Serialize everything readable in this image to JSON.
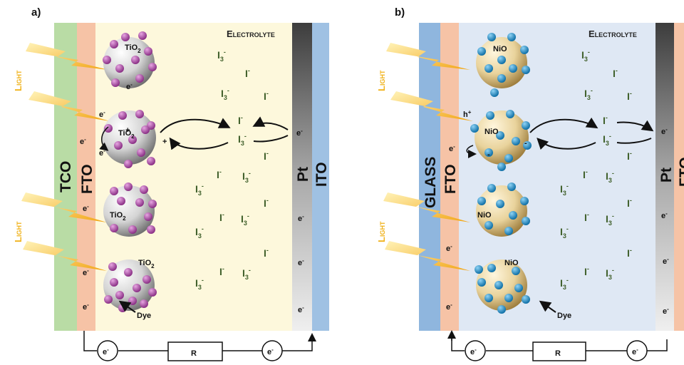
{
  "panel_a": {
    "tag": "a)",
    "electrolyte": "Electrolyte",
    "light_top": "Light",
    "light_bottom": "Light",
    "tco": "TCO",
    "fto": "FTO",
    "pt": "Pt",
    "ito": "ITO",
    "np_label": "TiO",
    "np_sub": "2",
    "dye": "Dye",
    "resistor": "R",
    "electron": "e",
    "electron_sup": "-",
    "hole_plus": "+"
  },
  "panel_b": {
    "tag": "b)",
    "electrolyte": "Electrolyte",
    "light_top": "Light",
    "light_bottom": "Light",
    "glass": "GLASS",
    "fto": "FTO",
    "pt": "Pt",
    "fto_right": "FTO",
    "np_label": "NiO",
    "dye": "Dye",
    "resistor": "R",
    "electron": "e",
    "hole": "h",
    "hole_sup": "+",
    "minus": "-"
  },
  "ions": {
    "triiodide": "I",
    "triiodide_sub": "3",
    "iodide": "I",
    "charge": "-"
  },
  "colors": {
    "tco_green": "#b9dca5",
    "fto_peach": "#f6c3a6",
    "electrolyte_a": "#fdf8dc",
    "electrolyte_b": "#dfe8f4",
    "glass_blue": "#8fb6de",
    "ito_blue": "#9fc1e3",
    "tio2_dot": "#b04fa9",
    "nio_dot": "#1f93cc",
    "ion_green": "#3f5f2a",
    "light_yellow": "#f0b21a"
  }
}
